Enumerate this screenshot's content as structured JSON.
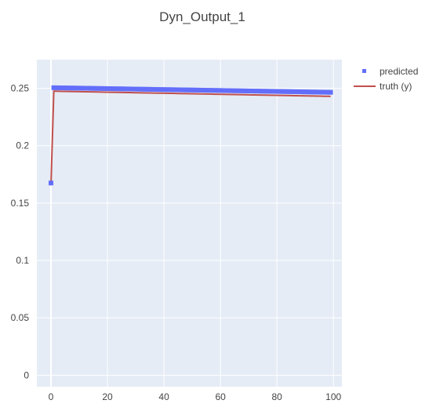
{
  "chart_data": {
    "type": "scatter",
    "title": "Dyn_Output_1",
    "xlabel": "",
    "ylabel": "",
    "xlim": [
      -5,
      103
    ],
    "ylim": [
      -0.01,
      0.275
    ],
    "xticks": [
      0,
      20,
      40,
      60,
      80,
      100
    ],
    "yticks": [
      0,
      0.05,
      0.1,
      0.15,
      0.2,
      0.25
    ],
    "xtick_labels": [
      "0",
      "20",
      "40",
      "60",
      "80",
      "100"
    ],
    "ytick_labels": [
      "0",
      "0.05",
      "0.1",
      "0.15",
      "0.2",
      "0.25"
    ],
    "grid": true,
    "legend_position": "top-right",
    "series": [
      {
        "name": "predicted",
        "mode": "markers",
        "color": "#636efa",
        "first": {
          "x": 0,
          "y": 0.1675
        },
        "x_range": [
          1,
          99
        ],
        "y_start": 0.2505,
        "y_end": 0.2465
      },
      {
        "name": "truth (y)",
        "mode": "lines",
        "color": "#c0504d",
        "first": {
          "x": 0,
          "y": 0.1655
        },
        "x_range": [
          1,
          99
        ],
        "y_start": 0.2475,
        "y_end": 0.243
      }
    ]
  }
}
